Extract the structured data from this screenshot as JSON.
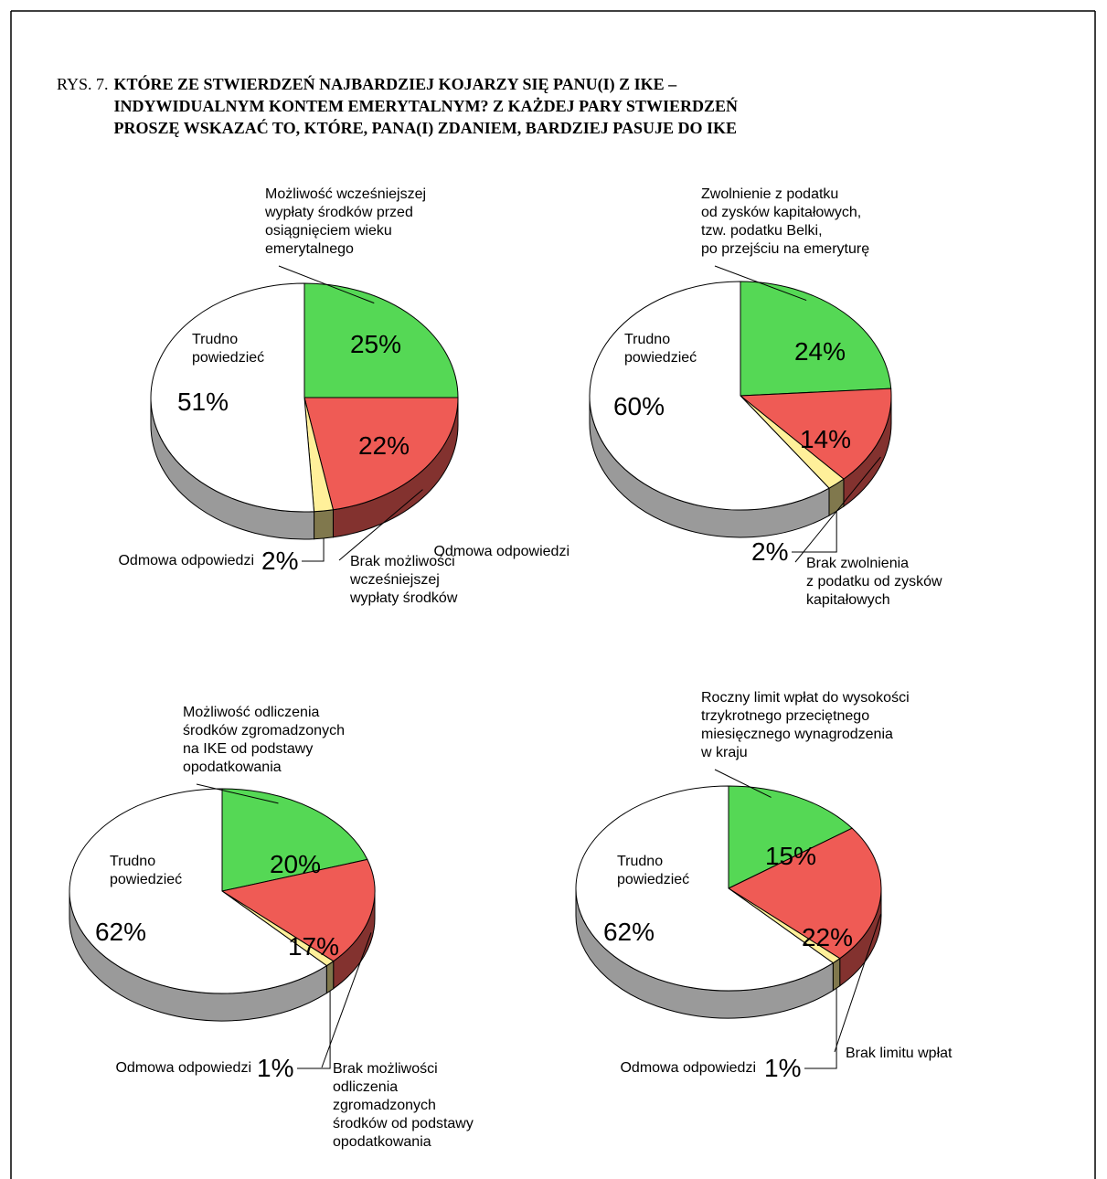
{
  "header": {
    "prefix": "RYS. 7.",
    "title_lines": [
      "KTÓRE ZE STWIERDZEŃ NAJBARDZIEJ KOJARZY SIĘ PANU(I) Z IKE –",
      "INDYWIDUALNYM KONTEM EMERYTALNYM? Z KAŻDEJ PARY STWIERDZEŃ",
      "PROSZĘ WSKAZAĆ TO, KTÓRE, PANA(I) ZDANIEM, BARDZIEJ PASUJE DO IKE"
    ]
  },
  "chart_data": [
    {
      "type": "pie",
      "categories": [
        "Możliwość wcześniejszej\nwypłaty środków przed\nosiągnięciem wieku\nemerytalnego",
        "Brak możliwości\nwcześniejszej\nwypłaty środków",
        "Odmowa odpowiedzi",
        "Trudno\npowiedzieć"
      ],
      "values": [
        25,
        22,
        2,
        51
      ],
      "value_labels": [
        "25%",
        "22%",
        "2%",
        "51%"
      ],
      "colors": [
        "#55d855",
        "#ef5b55",
        "#fff09a",
        "#ffffff"
      ]
    },
    {
      "type": "pie",
      "categories": [
        "Zwolnienie z podatku\nod zysków kapitałowych,\ntzw. podatku Belki,\npo przejściu na emeryturę",
        "Brak zwolnienia\nz podatku od zysków\nkapitałowych",
        "Odmowa odpowiedzi",
        "Trudno\npowiedzieć"
      ],
      "values": [
        24,
        14,
        2,
        60
      ],
      "value_labels": [
        "24%",
        "14%",
        "2%",
        "60%"
      ],
      "colors": [
        "#55d855",
        "#ef5b55",
        "#fff09a",
        "#ffffff"
      ]
    },
    {
      "type": "pie",
      "categories": [
        "Możliwość odliczenia\nśrodków zgromadzonych\nna IKE od podstawy\nopodatkowania",
        "Brak możliwości\nodliczenia\nzgromadzonych\nśrodków od podstawy\nopodatkowania",
        "Odmowa odpowiedzi",
        "Trudno\npowiedzieć"
      ],
      "values": [
        20,
        17,
        1,
        62
      ],
      "value_labels": [
        "20%",
        "17%",
        "1%",
        "62%"
      ],
      "colors": [
        "#55d855",
        "#ef5b55",
        "#fff09a",
        "#ffffff"
      ]
    },
    {
      "type": "pie",
      "categories": [
        "Roczny limit wpłat do wysokości\ntrzykrotnego przeciętnego\nmiesięcznego wynagrodzenia\nw kraju",
        "Brak limitu wpłat",
        "Odmowa odpowiedzi",
        "Trudno\npowiedzieć"
      ],
      "values": [
        15,
        22,
        1,
        62
      ],
      "value_labels": [
        "15%",
        "22%",
        "1%",
        "62%"
      ],
      "colors": [
        "#55d855",
        "#ef5b55",
        "#fff09a",
        "#ffffff"
      ]
    }
  ]
}
